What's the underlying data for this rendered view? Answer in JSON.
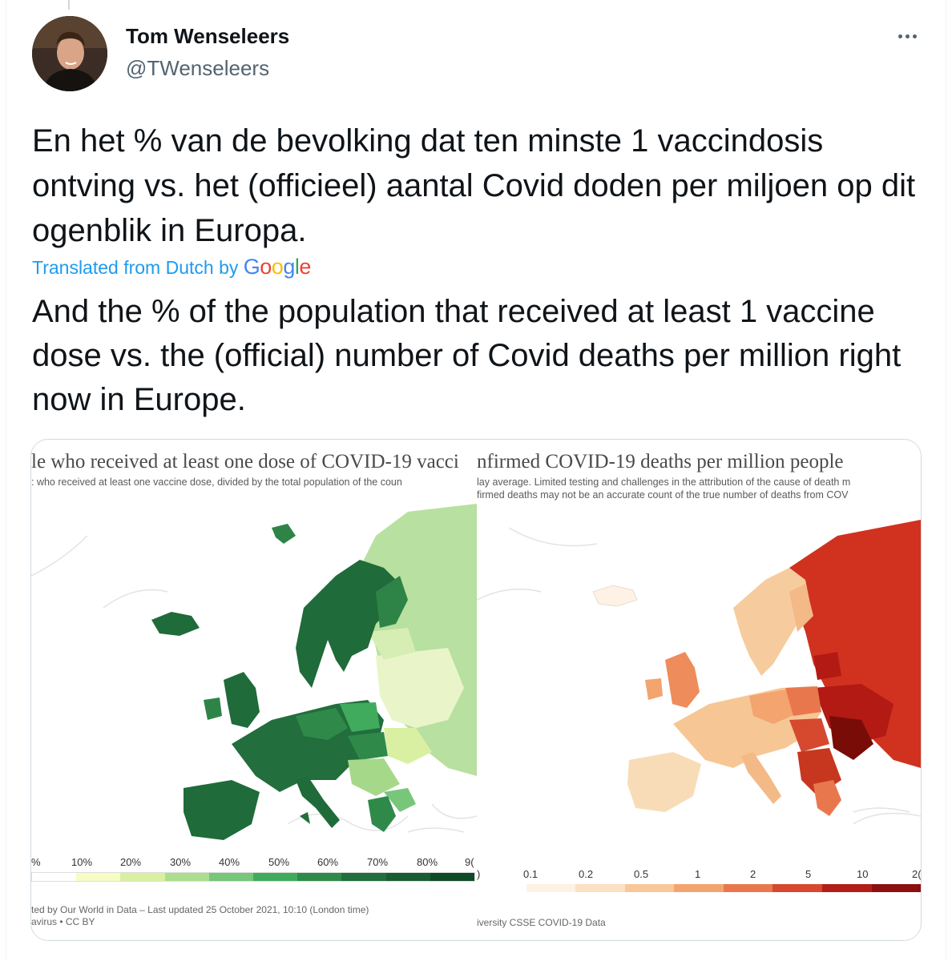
{
  "tweet": {
    "author_name": "Tom Wenseleers",
    "author_handle": "@TWenseleers",
    "text_original": "En het % van de bevolking dat ten minste 1 vaccindosis ontving vs. het (officieel) aantal Covid doden per miljoen op dit ogenblik in Europa.",
    "translated_label": "Translated from Dutch by",
    "translator_brand": "Google",
    "text_translated": "And the % of the population that received at least 1 vaccine dose vs. the (official) number of Covid deaths per million right now in Europe."
  },
  "media": {
    "left_panel": {
      "title": "le who received at least one dose of COVID-19 vacci",
      "subtitle": ": who received at least one vaccine dose, divided by the total population of the coun",
      "legend_ticks": [
        "%",
        "10%",
        "20%",
        "30%",
        "40%",
        "50%",
        "60%",
        "70%",
        "80%",
        "9("
      ],
      "legend_colors": [
        "#ffffff",
        "#f7fcc4",
        "#d9f0a3",
        "#addd8e",
        "#78c679",
        "#41ab5d",
        "#2f8a4a",
        "#226e3c",
        "#1a5c32",
        "#0f4a27"
      ],
      "footer_line1": "ted by Our World in Data – Last updated 25 October 2021, 10:10 (London time)",
      "footer_line2": "avirus • CC BY"
    },
    "right_panel": {
      "title": "nfirmed COVID-19 deaths per million people",
      "subtitle_line1": "lay average. Limited testing and challenges in the attribution of the cause of death m",
      "subtitle_line2": "firmed deaths may not be an accurate count of the true number of deaths from COV",
      "legend_ticks": [
        ")",
        "0.1",
        "0.2",
        "0.5",
        "1",
        "2",
        "5",
        "10",
        "2("
      ],
      "legend_colors": [
        "#ffffff",
        "#fdf2e4",
        "#fbe0c2",
        "#f8c898",
        "#f3a46f",
        "#e9774e",
        "#d6492f",
        "#b01f18",
        "#8c1010"
      ],
      "footer": "iversity CSSE COVID-19 Data"
    }
  }
}
